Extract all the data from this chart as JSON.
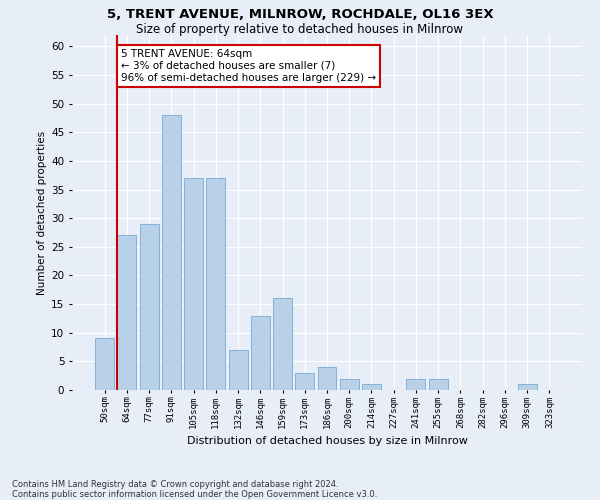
{
  "title_line1": "5, TRENT AVENUE, MILNROW, ROCHDALE, OL16 3EX",
  "title_line2": "Size of property relative to detached houses in Milnrow",
  "xlabel": "Distribution of detached houses by size in Milnrow",
  "ylabel": "Number of detached properties",
  "categories": [
    "50sqm",
    "64sqm",
    "77sqm",
    "91sqm",
    "105sqm",
    "118sqm",
    "132sqm",
    "146sqm",
    "159sqm",
    "173sqm",
    "186sqm",
    "200sqm",
    "214sqm",
    "227sqm",
    "241sqm",
    "255sqm",
    "268sqm",
    "282sqm",
    "296sqm",
    "309sqm",
    "323sqm"
  ],
  "values": [
    9,
    27,
    29,
    48,
    37,
    37,
    7,
    13,
    16,
    3,
    4,
    2,
    1,
    0,
    2,
    2,
    0,
    0,
    0,
    1,
    0
  ],
  "bar_color": "#b8d0e8",
  "bar_edge_color": "#7aaad0",
  "highlight_index": 1,
  "highlight_color": "#cc0000",
  "annotation_text": "5 TRENT AVENUE: 64sqm\n← 3% of detached houses are smaller (7)\n96% of semi-detached houses are larger (229) →",
  "annotation_box_color": "#ffffff",
  "annotation_border_color": "#cc0000",
  "ylim": [
    0,
    62
  ],
  "yticks": [
    0,
    5,
    10,
    15,
    20,
    25,
    30,
    35,
    40,
    45,
    50,
    55,
    60
  ],
  "footnote": "Contains HM Land Registry data © Crown copyright and database right 2024.\nContains public sector information licensed under the Open Government Licence v3.0.",
  "bg_color": "#e8eef8",
  "grid_color": "#ffffff"
}
